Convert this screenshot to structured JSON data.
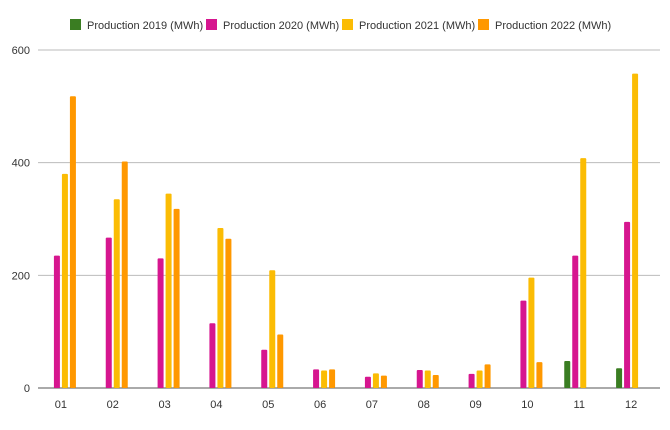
{
  "chart_data": {
    "type": "bar",
    "categories": [
      "01",
      "02",
      "03",
      "04",
      "05",
      "06",
      "07",
      "08",
      "09",
      "10",
      "11",
      "12"
    ],
    "series": [
      {
        "name": "Production 2019 (MWh)",
        "color": "#3a7d22",
        "values": [
          null,
          null,
          null,
          null,
          null,
          null,
          null,
          null,
          null,
          null,
          48,
          35
        ]
      },
      {
        "name": "Production 2020 (MWh)",
        "color": "#d6168f",
        "values": [
          235,
          267,
          230,
          115,
          68,
          33,
          20,
          32,
          25,
          155,
          235,
          295
        ]
      },
      {
        "name": "Production 2021 (MWh)",
        "color": "#fbbc04",
        "values": [
          380,
          335,
          345,
          284,
          209,
          31,
          26,
          31,
          31,
          196,
          408,
          558
        ]
      },
      {
        "name": "Production 2022 (MWh)",
        "color": "#ff9800",
        "values": [
          518,
          402,
          318,
          265,
          95,
          33,
          22,
          23,
          42,
          46,
          null,
          null
        ]
      }
    ],
    "yticks": [
      0,
      200,
      400,
      600
    ],
    "ylim": [
      0,
      600
    ],
    "xlabel": "",
    "ylabel": "",
    "grid": true,
    "legend_position": "top"
  }
}
